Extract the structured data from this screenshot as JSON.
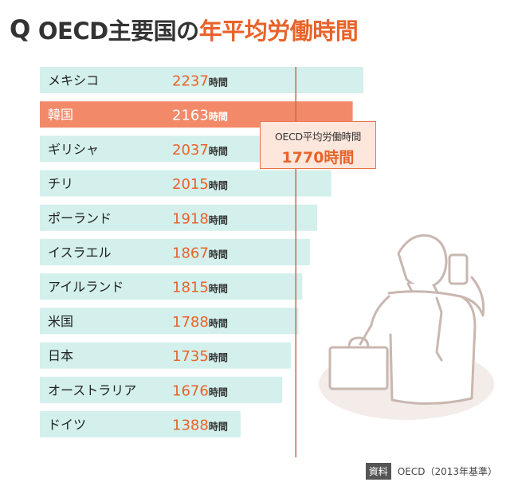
{
  "title": {
    "prefix": "Q",
    "main": "OECD主要国の",
    "accent": "年平均労働時間"
  },
  "chart_data": {
    "type": "bar",
    "orientation": "horizontal",
    "title": "OECD主要国の年平均労働時間",
    "unit": "時間",
    "categories": [
      "メキシコ",
      "韓国",
      "ギリシャ",
      "チリ",
      "ポーランド",
      "イスラエル",
      "アイルランド",
      "米国",
      "日本",
      "オーストラリア",
      "ドイツ"
    ],
    "values": [
      2237,
      2163,
      2037,
      2015,
      1918,
      1867,
      1815,
      1788,
      1735,
      1676,
      1388
    ],
    "highlight": "韓国",
    "reference_line": {
      "label": "OECD平均労働時間",
      "value": 1770,
      "value_text": "1770時間"
    },
    "source": "OECD（2013年基準）"
  },
  "source": {
    "tag": "資料",
    "text": "OECD（2013年基準）"
  },
  "colors": {
    "bar": "#d3f0ec",
    "highlight_bar": "#f28a6a",
    "value_text": "#e8632a",
    "label_text": "#222222",
    "highlight_text": "#ffffff",
    "reference_line": "#c46a4a"
  }
}
